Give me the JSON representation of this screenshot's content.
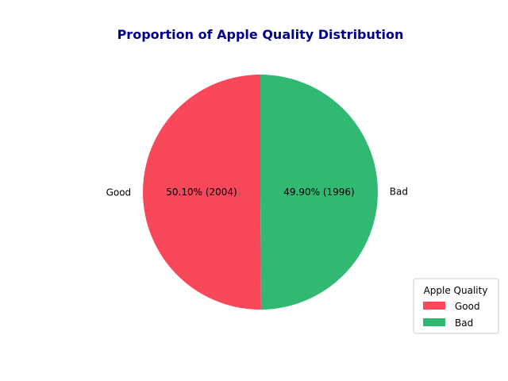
{
  "chart_data": {
    "type": "pie",
    "title": "Proportion of Apple Quality Distribution",
    "title_color": "#00008B",
    "categories": [
      "Good",
      "Bad"
    ],
    "values": [
      2004,
      1996
    ],
    "percent_labels": [
      "50.10%  (2004)",
      "49.90%  (1996)"
    ],
    "colors": [
      "#F9485A",
      "#31B973"
    ],
    "start_angle_deg": 90,
    "direction": "counterclockwise",
    "legend": {
      "title": "Apple Quality",
      "placement": "lower-right",
      "entries": [
        "Good",
        "Bad"
      ]
    }
  }
}
